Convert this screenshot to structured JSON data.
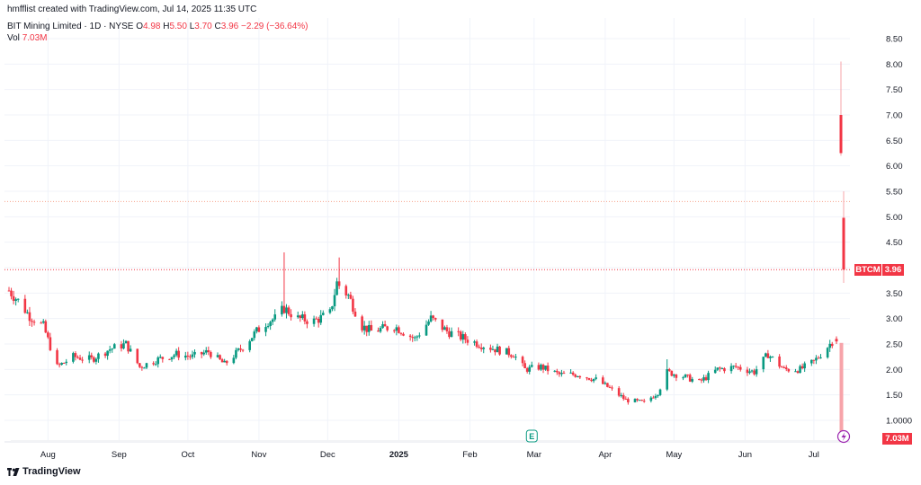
{
  "header": {
    "credit": "hmfflist created with TradingView.com, Jul 14, 2025 11:35 UTC",
    "symbol_line": "BIT Mining Limited · 1D · NYSE",
    "ohlc": {
      "o_label": "O",
      "o": "4.98",
      "h_label": "H",
      "h": "5.50",
      "l_label": "L",
      "l": "3.70",
      "c_label": "C",
      "c": "3.96",
      "change": "−2.29 (−36.64%)"
    },
    "vol_label": "Vol",
    "vol_value": "7.03M"
  },
  "price_label": {
    "symbol": "BTCM",
    "value": "3.96"
  },
  "volume_label": {
    "value": "7.03M"
  },
  "brand": "TradingView",
  "colors": {
    "up": "#089981",
    "down": "#f23645",
    "grid": "#f0f3fa",
    "axis_text": "#131722"
  },
  "icons": [
    "earnings-e-icon",
    "lightning-split-icon",
    "tradingview-logo-icon"
  ],
  "chart_data": {
    "type": "candlestick",
    "title": "BIT Mining Limited · 1D · NYSE",
    "y_ticks": [
      "8.50",
      "8.00",
      "7.50",
      "7.00",
      "6.50",
      "6.00",
      "5.50",
      "5.00",
      "4.50",
      "4.00",
      "3.50",
      "3.00",
      "2.50",
      "2.00",
      "1.50",
      "1.0000"
    ],
    "ylim": [
      0.8,
      8.75
    ],
    "x_ticks": [
      "Aug",
      "Sep",
      "Oct",
      "Nov",
      "Dec",
      "2025",
      "Feb",
      "Mar",
      "Apr",
      "May",
      "Jun",
      "Jul"
    ],
    "x_tick_dates": [
      "2024-08-01",
      "2024-09-01",
      "2024-10-01",
      "2024-11-01",
      "2024-12-01",
      "2025-01-01",
      "2025-02-01",
      "2025-03-01",
      "2025-04-01",
      "2025-05-01",
      "2025-06-01",
      "2025-07-01"
    ],
    "date_range": [
      "2024-07-15",
      "2025-07-14"
    ],
    "grid": true,
    "price_lines": [
      {
        "value": 3.96,
        "color": "#f23645",
        "style": "dotted"
      },
      {
        "value": 5.3,
        "color": "#f7a48c",
        "style": "dotted"
      }
    ],
    "events": [
      {
        "date": "2025-02-28",
        "type": "earnings"
      },
      {
        "date": "2025-07-14",
        "type": "split"
      }
    ],
    "anchors": [
      [
        "2024-07-15",
        3.55
      ],
      [
        "2024-07-19",
        3.35
      ],
      [
        "2024-07-24",
        3.05
      ],
      [
        "2024-07-30",
        2.85
      ],
      [
        "2024-08-05",
        2.05
      ],
      [
        "2024-08-12",
        2.25
      ],
      [
        "2024-08-20",
        2.2
      ],
      [
        "2024-08-28",
        2.4
      ],
      [
        "2024-09-04",
        2.5
      ],
      [
        "2024-09-10",
        2.05
      ],
      [
        "2024-09-18",
        2.2
      ],
      [
        "2024-09-26",
        2.3
      ],
      [
        "2024-10-03",
        2.25
      ],
      [
        "2024-10-10",
        2.35
      ],
      [
        "2024-10-17",
        2.1
      ],
      [
        "2024-10-24",
        2.4
      ],
      [
        "2024-10-31",
        2.75
      ],
      [
        "2024-11-05",
        2.95
      ],
      [
        "2024-11-08",
        3.0
      ],
      [
        "2024-11-12",
        3.2
      ],
      [
        "2024-11-18",
        3.0
      ],
      [
        "2024-11-25",
        2.95
      ],
      [
        "2024-12-02",
        3.1
      ],
      [
        "2024-12-05",
        3.7
      ],
      [
        "2024-12-10",
        3.45
      ],
      [
        "2024-12-16",
        2.85
      ],
      [
        "2024-12-20",
        2.75
      ],
      [
        "2024-12-30",
        2.85
      ],
      [
        "2025-01-08",
        2.6
      ],
      [
        "2025-01-15",
        3.0
      ],
      [
        "2025-01-22",
        2.75
      ],
      [
        "2025-01-30",
        2.6
      ],
      [
        "2025-02-05",
        2.5
      ],
      [
        "2025-02-12",
        2.4
      ],
      [
        "2025-02-20",
        2.3
      ],
      [
        "2025-02-25",
        2.0
      ],
      [
        "2025-03-04",
        2.05
      ],
      [
        "2025-03-12",
        1.9
      ],
      [
        "2025-03-20",
        1.9
      ],
      [
        "2025-03-28",
        1.8
      ],
      [
        "2025-04-04",
        1.6
      ],
      [
        "2025-04-10",
        1.4
      ],
      [
        "2025-04-18",
        1.35
      ],
      [
        "2025-04-24",
        1.55
      ],
      [
        "2025-04-28",
        1.95
      ],
      [
        "2025-05-06",
        1.85
      ],
      [
        "2025-05-12",
        1.75
      ],
      [
        "2025-05-20",
        2.0
      ],
      [
        "2025-05-28",
        2.05
      ],
      [
        "2025-06-05",
        1.95
      ],
      [
        "2025-06-11",
        2.3
      ],
      [
        "2025-06-18",
        2.0
      ],
      [
        "2025-06-25",
        2.0
      ],
      [
        "2025-07-01",
        2.15
      ],
      [
        "2025-07-07",
        2.45
      ],
      [
        "2025-07-09",
        2.55
      ]
    ],
    "final_candles": [
      {
        "date": "2025-07-10",
        "o": 2.6,
        "h": 2.65,
        "l": 2.5,
        "c": 2.55,
        "dir": "down"
      },
      {
        "date": "2025-07-11",
        "o": 7.0,
        "h": 8.05,
        "l": 6.2,
        "c": 6.25,
        "dir": "down"
      },
      {
        "date": "2025-07-14",
        "o": 4.98,
        "h": 5.5,
        "l": 3.7,
        "c": 3.96,
        "dir": "down"
      }
    ],
    "volume": {
      "last_value": "7.03M",
      "spike_fraction": 0.95
    }
  }
}
